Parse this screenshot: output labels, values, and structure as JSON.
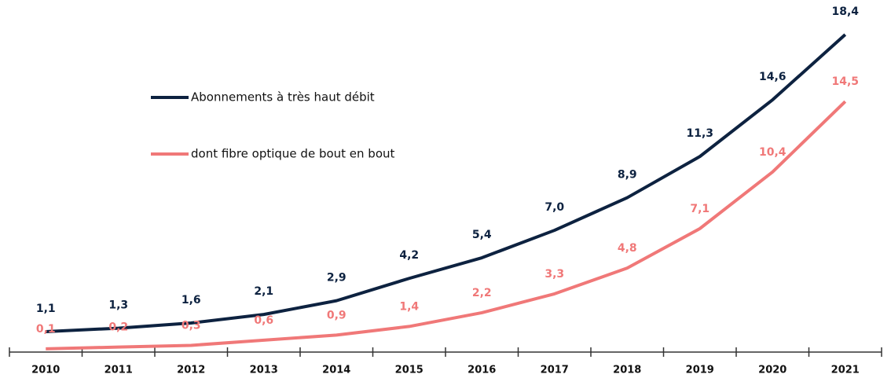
{
  "chart_data": {
    "type": "line",
    "categories": [
      "2010",
      "2011",
      "2012",
      "2013",
      "2014",
      "2015",
      "2016",
      "2017",
      "2018",
      "2019",
      "2020",
      "2021"
    ],
    "series": [
      {
        "name": "Abonnements à très haut débit",
        "color": "#0d2240",
        "values": [
          1.1,
          1.3,
          1.6,
          2.1,
          2.9,
          4.2,
          5.4,
          7.0,
          8.9,
          11.3,
          14.6,
          18.4
        ],
        "value_labels": [
          "1,1",
          "1,3",
          "1,6",
          "2,1",
          "2,9",
          "4,2",
          "5,4",
          "7,0",
          "8,9",
          "11,3",
          "14,6",
          "18,4"
        ]
      },
      {
        "name": "dont fibre optique de bout en bout",
        "color": "#f07878",
        "values": [
          0.1,
          0.2,
          0.3,
          0.6,
          0.9,
          1.4,
          2.2,
          3.3,
          4.8,
          7.1,
          10.4,
          14.5
        ],
        "value_labels": [
          "0,1",
          "0,2",
          "0,3",
          "0,6",
          "0,9",
          "1,4",
          "2,2",
          "3,3",
          "4,8",
          "7,1",
          "10,4",
          "14,5"
        ]
      }
    ]
  }
}
